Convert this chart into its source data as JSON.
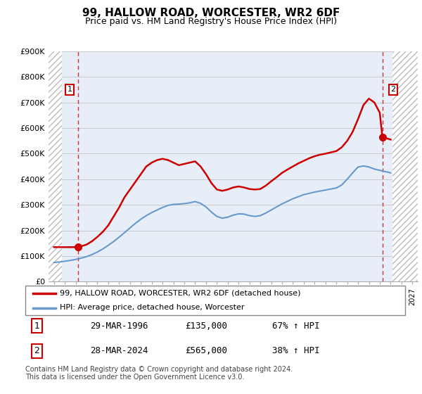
{
  "title": "99, HALLOW ROAD, WORCESTER, WR2 6DF",
  "subtitle": "Price paid vs. HM Land Registry's House Price Index (HPI)",
  "ylim": [
    0,
    900000
  ],
  "yticks": [
    0,
    100000,
    200000,
    300000,
    400000,
    500000,
    600000,
    700000,
    800000,
    900000
  ],
  "ytick_labels": [
    "£0",
    "£100K",
    "£200K",
    "£300K",
    "£400K",
    "£500K",
    "£600K",
    "£700K",
    "£800K",
    "£900K"
  ],
  "xlim_start": 1993.5,
  "xlim_end": 2027.5,
  "line_color_red": "#cc0000",
  "line_color_blue": "#6699cc",
  "plot_bg_color": "#e8eef8",
  "grid_color": "#bbbbbb",
  "hatch_color": "#bbbbbb",
  "point1_x": 1996.24,
  "point1_y": 135000,
  "point2_x": 2024.24,
  "point2_y": 565000,
  "legend_line1": "99, HALLOW ROAD, WORCESTER, WR2 6DF (detached house)",
  "legend_line2": "HPI: Average price, detached house, Worcester",
  "point1_date": "29-MAR-1996",
  "point1_price": "£135,000",
  "point1_hpi": "67% ↑ HPI",
  "point2_date": "28-MAR-2024",
  "point2_price": "£565,000",
  "point2_hpi": "38% ↑ HPI",
  "footer": "Contains HM Land Registry data © Crown copyright and database right 2024.\nThis data is licensed under the Open Government Licence v3.0.",
  "red_line_x": [
    1994.0,
    1994.5,
    1995.0,
    1995.5,
    1996.0,
    1996.24,
    1997.0,
    1997.5,
    1998.0,
    1998.5,
    1999.0,
    1999.5,
    2000.0,
    2000.5,
    2001.0,
    2001.5,
    2002.0,
    2002.5,
    2003.0,
    2003.5,
    2004.0,
    2004.5,
    2005.0,
    2005.5,
    2006.0,
    2006.5,
    2007.0,
    2007.5,
    2008.0,
    2008.5,
    2009.0,
    2009.5,
    2010.0,
    2010.5,
    2011.0,
    2011.5,
    2012.0,
    2012.5,
    2013.0,
    2013.5,
    2014.0,
    2014.5,
    2015.0,
    2015.5,
    2016.0,
    2016.5,
    2017.0,
    2017.5,
    2018.0,
    2018.5,
    2019.0,
    2019.5,
    2020.0,
    2020.5,
    2021.0,
    2021.5,
    2022.0,
    2022.5,
    2023.0,
    2023.5,
    2024.0,
    2024.24,
    2025.0
  ],
  "red_line_y": [
    135000,
    135000,
    135000,
    135000,
    135000,
    135000,
    145000,
    158000,
    175000,
    195000,
    220000,
    255000,
    290000,
    330000,
    360000,
    390000,
    420000,
    450000,
    465000,
    475000,
    480000,
    475000,
    465000,
    455000,
    460000,
    465000,
    470000,
    450000,
    420000,
    385000,
    360000,
    355000,
    360000,
    368000,
    372000,
    368000,
    362000,
    360000,
    362000,
    375000,
    392000,
    408000,
    425000,
    438000,
    450000,
    462000,
    472000,
    482000,
    490000,
    496000,
    500000,
    505000,
    510000,
    525000,
    550000,
    585000,
    635000,
    690000,
    715000,
    700000,
    660000,
    565000,
    555000
  ],
  "blue_line_x": [
    1994.0,
    1994.5,
    1995.0,
    1995.5,
    1996.0,
    1996.5,
    1997.0,
    1997.5,
    1998.0,
    1998.5,
    1999.0,
    1999.5,
    2000.0,
    2000.5,
    2001.0,
    2001.5,
    2002.0,
    2002.5,
    2003.0,
    2003.5,
    2004.0,
    2004.5,
    2005.0,
    2005.5,
    2006.0,
    2006.5,
    2007.0,
    2007.5,
    2008.0,
    2008.5,
    2009.0,
    2009.5,
    2010.0,
    2010.5,
    2011.0,
    2011.5,
    2012.0,
    2012.5,
    2013.0,
    2013.5,
    2014.0,
    2014.5,
    2015.0,
    2015.5,
    2016.0,
    2016.5,
    2017.0,
    2017.5,
    2018.0,
    2018.5,
    2019.0,
    2019.5,
    2020.0,
    2020.5,
    2021.0,
    2021.5,
    2022.0,
    2022.5,
    2023.0,
    2023.5,
    2024.0,
    2024.5,
    2025.0
  ],
  "blue_line_y": [
    75000,
    77000,
    80000,
    83000,
    87000,
    92000,
    98000,
    106000,
    116000,
    128000,
    142000,
    157000,
    174000,
    192000,
    210000,
    228000,
    244000,
    258000,
    270000,
    280000,
    290000,
    298000,
    302000,
    303000,
    305000,
    308000,
    313000,
    306000,
    292000,
    272000,
    255000,
    248000,
    252000,
    260000,
    265000,
    264000,
    258000,
    255000,
    258000,
    268000,
    280000,
    292000,
    304000,
    314000,
    324000,
    332000,
    340000,
    345000,
    350000,
    354000,
    358000,
    362000,
    366000,
    378000,
    400000,
    425000,
    448000,
    452000,
    448000,
    440000,
    435000,
    430000,
    425000
  ]
}
